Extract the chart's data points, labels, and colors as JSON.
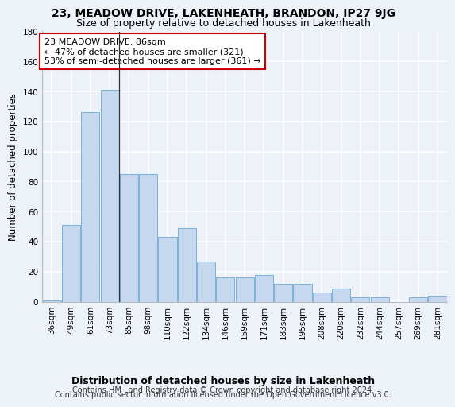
{
  "title": "23, MEADOW DRIVE, LAKENHEATH, BRANDON, IP27 9JG",
  "subtitle": "Size of property relative to detached houses in Lakenheath",
  "xlabel": "Distribution of detached houses by size in Lakenheath",
  "ylabel": "Number of detached properties",
  "categories": [
    "36sqm",
    "49sqm",
    "61sqm",
    "73sqm",
    "85sqm",
    "98sqm",
    "110sqm",
    "122sqm",
    "134sqm",
    "146sqm",
    "159sqm",
    "171sqm",
    "183sqm",
    "195sqm",
    "208sqm",
    "220sqm",
    "232sqm",
    "244sqm",
    "257sqm",
    "269sqm",
    "281sqm"
  ],
  "values": [
    1,
    51,
    126,
    141,
    85,
    85,
    43,
    49,
    27,
    16,
    16,
    18,
    12,
    12,
    6,
    9,
    3,
    3,
    0,
    3,
    4
  ],
  "bar_color": "#c5d8ef",
  "bar_edge_color": "#6aaad4",
  "highlight_bar_index": 4,
  "highlight_line_color": "#333333",
  "ylim": [
    0,
    180
  ],
  "yticks": [
    0,
    20,
    40,
    60,
    80,
    100,
    120,
    140,
    160,
    180
  ],
  "annotation_title": "23 MEADOW DRIVE: 86sqm",
  "annotation_line1": "← 47% of detached houses are smaller (321)",
  "annotation_line2": "53% of semi-detached houses are larger (361) →",
  "annotation_box_color": "#ffffff",
  "annotation_box_edge": "#cc0000",
  "footer_line1": "Contains HM Land Registry data © Crown copyright and database right 2024.",
  "footer_line2": "Contains public sector information licensed under the Open Government Licence v3.0.",
  "background_color": "#edf2f9",
  "grid_color": "#ffffff",
  "title_fontsize": 10,
  "subtitle_fontsize": 9,
  "xlabel_fontsize": 9,
  "ylabel_fontsize": 8.5,
  "tick_fontsize": 7.5,
  "footer_fontsize": 7
}
